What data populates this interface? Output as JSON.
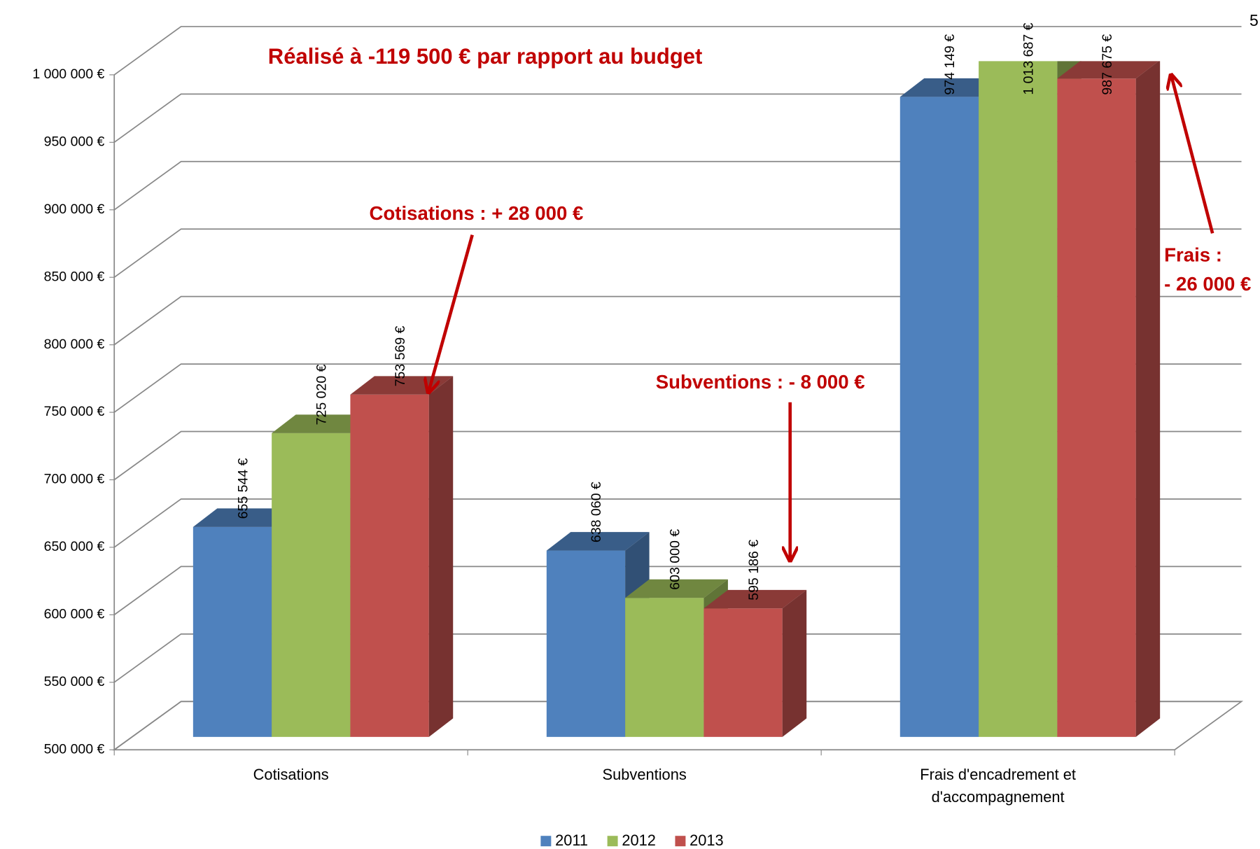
{
  "chart_data": {
    "type": "bar3d",
    "categories": [
      "Cotisations",
      "Subventions",
      "Frais d'encadrement et d'accompagnement"
    ],
    "series": [
      {
        "name": "2011",
        "color": "#4f81bd",
        "values": [
          655544,
          638060,
          974149
        ],
        "value_labels": [
          "655 544 €",
          "638 060 €",
          "974 149 €"
        ]
      },
      {
        "name": "2012",
        "color": "#9bbb59",
        "values": [
          725020,
          603000,
          1013687
        ],
        "value_labels": [
          "725 020 €",
          "603 000 €",
          "1 013 687 €"
        ]
      },
      {
        "name": "2013",
        "color": "#c0504d",
        "values": [
          753569,
          595186,
          987675
        ],
        "value_labels": [
          "753 569 €",
          "595 186 €",
          "987 675 €"
        ]
      }
    ],
    "ylim": [
      500000,
      1000000
    ],
    "yticks": [
      {
        "value": 500000,
        "label": "500 000 €"
      },
      {
        "value": 550000,
        "label": "550 000 €"
      },
      {
        "value": 600000,
        "label": "600 000 €"
      },
      {
        "value": 650000,
        "label": "650 000 €"
      },
      {
        "value": 700000,
        "label": "700 000 €"
      },
      {
        "value": 750000,
        "label": "750 000 €"
      },
      {
        "value": 800000,
        "label": "800 000 €"
      },
      {
        "value": 850000,
        "label": "850 000 €"
      },
      {
        "value": 900000,
        "label": "900 000 €"
      },
      {
        "value": 950000,
        "label": "950 000 €"
      },
      {
        "value": 1000000,
        "label": "1 000 000 €"
      }
    ],
    "grid": true,
    "legend": "bottom",
    "annotations": [
      "Réalisé à  -119 500 € par rapport au budget",
      "Cotisations : + 28 000 €",
      "Subventions : - 8 000 €",
      "Frais :",
      "- 26 000 €",
      "5"
    ]
  }
}
